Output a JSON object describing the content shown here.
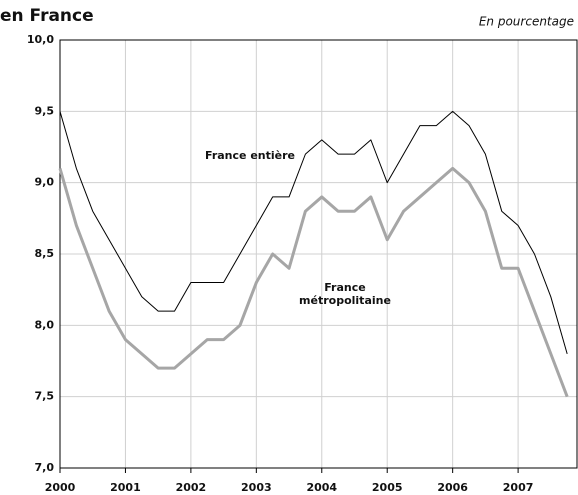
{
  "chart_data": {
    "type": "line",
    "title": "en France",
    "subtitle": "En pourcentage",
    "x": [
      2000,
      2000.25,
      2000.5,
      2000.75,
      2001,
      2001.25,
      2001.5,
      2001.75,
      2002,
      2002.25,
      2002.5,
      2002.75,
      2003,
      2003.25,
      2003.5,
      2003.75,
      2004,
      2004.25,
      2004.5,
      2004.75,
      2005,
      2005.25,
      2005.5,
      2005.75,
      2006,
      2006.25,
      2006.5,
      2006.75,
      2007,
      2007.25,
      2007.5,
      2007.75
    ],
    "series": [
      {
        "name": "France entière",
        "color": "#000000",
        "values": [
          9.5,
          9.1,
          8.8,
          8.6,
          8.4,
          8.2,
          8.1,
          8.1,
          8.3,
          8.3,
          8.3,
          8.5,
          8.7,
          8.9,
          8.9,
          9.2,
          9.3,
          9.2,
          9.2,
          9.3,
          9.0,
          9.2,
          9.4,
          9.4,
          9.5,
          9.4,
          9.2,
          8.8,
          8.7,
          8.5,
          8.2,
          7.8
        ]
      },
      {
        "name": "France métropolitaine",
        "color": "#a6a6a6",
        "values": [
          9.1,
          8.7,
          8.4,
          8.1,
          7.9,
          7.8,
          7.7,
          7.7,
          7.8,
          7.9,
          7.9,
          8.0,
          8.3,
          8.5,
          8.4,
          8.8,
          8.9,
          8.8,
          8.8,
          8.9,
          8.6,
          8.8,
          8.9,
          9.0,
          9.1,
          9.0,
          8.8,
          8.4,
          8.4,
          8.1,
          7.8,
          7.5
        ]
      }
    ],
    "xlim": [
      2000,
      2007.9
    ],
    "xticks": [
      2000,
      2001,
      2002,
      2003,
      2004,
      2005,
      2006,
      2007
    ],
    "ylim": [
      7,
      10
    ],
    "yticks": [
      {
        "value": 7,
        "label": "7,0"
      },
      {
        "value": 7.5,
        "label": "7,5"
      },
      {
        "value": 8,
        "label": "8,0"
      },
      {
        "value": 8.5,
        "label": "8,5"
      },
      {
        "value": 9,
        "label": "9,0"
      },
      {
        "value": 9.5,
        "label": "9,5"
      },
      {
        "value": 10,
        "label": "10,0"
      }
    ],
    "grid": true
  }
}
